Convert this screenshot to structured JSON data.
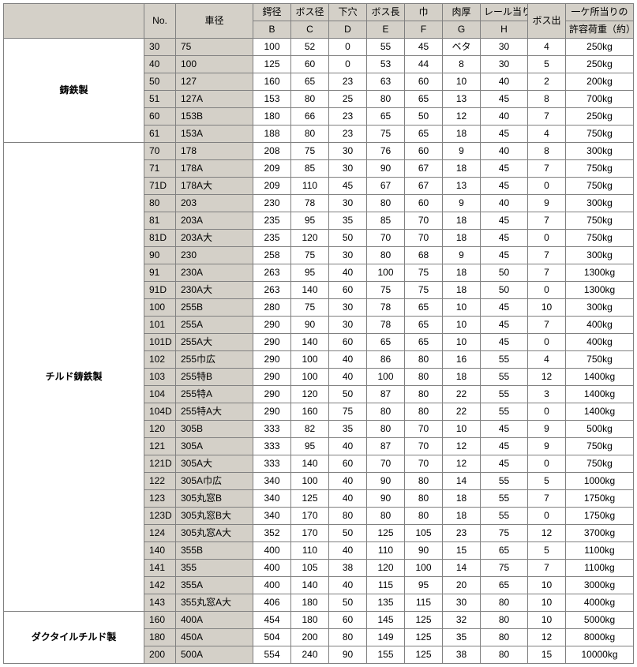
{
  "table": {
    "columns": [
      {
        "top": "",
        "bottom": "",
        "class": "c0"
      },
      {
        "top": "No.",
        "bottom": "",
        "class": "c1"
      },
      {
        "top": "車径",
        "bottom": "",
        "class": "c2"
      },
      {
        "top": "鍔径",
        "bottom": "B",
        "class": "c3"
      },
      {
        "top": "ボス径",
        "bottom": "C",
        "class": "c4"
      },
      {
        "top": "下穴",
        "bottom": "D",
        "class": "c5"
      },
      {
        "top": "ボス長",
        "bottom": "E",
        "class": "c6"
      },
      {
        "top": "巾",
        "bottom": "F",
        "class": "c7"
      },
      {
        "top": "肉厚",
        "bottom": "G",
        "class": "c8"
      },
      {
        "top": "レール当り",
        "bottom": "H",
        "class": "c9"
      },
      {
        "top": "ボス出",
        "bottom": "",
        "class": "c10"
      },
      {
        "top": "一ケ所当りの",
        "bottom": "許容荷重（約）",
        "class": "c11"
      }
    ],
    "categories": [
      {
        "name": "鋳鉄製",
        "rows": [
          [
            "30",
            "75",
            "100",
            "52",
            "0",
            "55",
            "45",
            "ベタ",
            "30",
            "4",
            "250kg"
          ],
          [
            "40",
            "100",
            "125",
            "60",
            "0",
            "53",
            "44",
            "8",
            "30",
            "5",
            "250kg"
          ],
          [
            "50",
            "127",
            "160",
            "65",
            "23",
            "63",
            "60",
            "10",
            "40",
            "2",
            "200kg"
          ],
          [
            "51",
            "127A",
            "153",
            "80",
            "25",
            "80",
            "65",
            "13",
            "45",
            "8",
            "700kg"
          ],
          [
            "60",
            "153B",
            "180",
            "66",
            "23",
            "65",
            "50",
            "12",
            "40",
            "7",
            "250kg"
          ],
          [
            "61",
            "153A",
            "188",
            "80",
            "23",
            "75",
            "65",
            "18",
            "45",
            "4",
            "750kg"
          ]
        ]
      },
      {
        "name": "チルド鋳鉄製",
        "rows": [
          [
            "70",
            "178",
            "208",
            "75",
            "30",
            "76",
            "60",
            "9",
            "40",
            "8",
            "300kg"
          ],
          [
            "71",
            "178A",
            "209",
            "85",
            "30",
            "90",
            "67",
            "18",
            "45",
            "7",
            "750kg"
          ],
          [
            "71D",
            "178A大",
            "209",
            "110",
            "45",
            "67",
            "67",
            "13",
            "45",
            "0",
            "750kg"
          ],
          [
            "80",
            "203",
            "230",
            "78",
            "30",
            "80",
            "60",
            "9",
            "40",
            "9",
            "300kg"
          ],
          [
            "81",
            "203A",
            "235",
            "95",
            "35",
            "85",
            "70",
            "18",
            "45",
            "7",
            "750kg"
          ],
          [
            "81D",
            "203A大",
            "235",
            "120",
            "50",
            "70",
            "70",
            "18",
            "45",
            "0",
            "750kg"
          ],
          [
            "90",
            "230",
            "258",
            "75",
            "30",
            "80",
            "68",
            "9",
            "45",
            "7",
            "300kg"
          ],
          [
            "91",
            "230A",
            "263",
            "95",
            "40",
            "100",
            "75",
            "18",
            "50",
            "7",
            "1300kg"
          ],
          [
            "91D",
            "230A大",
            "263",
            "140",
            "60",
            "75",
            "75",
            "18",
            "50",
            "0",
            "1300kg"
          ],
          [
            "100",
            "255B",
            "280",
            "75",
            "30",
            "78",
            "65",
            "10",
            "45",
            "10",
            "300kg"
          ],
          [
            "101",
            "255A",
            "290",
            "90",
            "30",
            "78",
            "65",
            "10",
            "45",
            "7",
            "400kg"
          ],
          [
            "101D",
            "255A大",
            "290",
            "140",
            "60",
            "65",
            "65",
            "10",
            "45",
            "0",
            "400kg"
          ],
          [
            "102",
            "255巾広",
            "290",
            "100",
            "40",
            "86",
            "80",
            "16",
            "55",
            "4",
            "750kg"
          ],
          [
            "103",
            "255特B",
            "290",
            "100",
            "40",
            "100",
            "80",
            "18",
            "55",
            "12",
            "1400kg"
          ],
          [
            "104",
            "255特A",
            "290",
            "120",
            "50",
            "87",
            "80",
            "22",
            "55",
            "3",
            "1400kg"
          ],
          [
            "104D",
            "255特A大",
            "290",
            "160",
            "75",
            "80",
            "80",
            "22",
            "55",
            "0",
            "1400kg"
          ],
          [
            "120",
            "305B",
            "333",
            "82",
            "35",
            "80",
            "70",
            "10",
            "45",
            "9",
            "500kg"
          ],
          [
            "121",
            "305A",
            "333",
            "95",
            "40",
            "87",
            "70",
            "12",
            "45",
            "9",
            "750kg"
          ],
          [
            "121D",
            "305A大",
            "333",
            "140",
            "60",
            "70",
            "70",
            "12",
            "45",
            "0",
            "750kg"
          ],
          [
            "122",
            "305A巾広",
            "340",
            "100",
            "40",
            "90",
            "80",
            "14",
            "55",
            "5",
            "1000kg"
          ],
          [
            "123",
            "305丸窓B",
            "340",
            "125",
            "40",
            "90",
            "80",
            "18",
            "55",
            "7",
            "1750kg"
          ],
          [
            "123D",
            "305丸窓B大",
            "340",
            "170",
            "80",
            "80",
            "80",
            "18",
            "55",
            "0",
            "1750kg"
          ],
          [
            "124",
            "305丸窓A大",
            "352",
            "170",
            "50",
            "125",
            "105",
            "23",
            "75",
            "12",
            "3700kg"
          ],
          [
            "140",
            "355B",
            "400",
            "110",
            "40",
            "110",
            "90",
            "15",
            "65",
            "5",
            "1100kg"
          ],
          [
            "141",
            "355",
            "400",
            "105",
            "38",
            "120",
            "100",
            "14",
            "75",
            "7",
            "1100kg"
          ],
          [
            "142",
            "355A",
            "400",
            "140",
            "40",
            "115",
            "95",
            "20",
            "65",
            "10",
            "3000kg"
          ],
          [
            "143",
            "355丸窓A大",
            "406",
            "180",
            "50",
            "135",
            "115",
            "30",
            "80",
            "10",
            "4000kg"
          ]
        ]
      },
      {
        "name": "ダクタイルチルド製",
        "rows": [
          [
            "160",
            "400A",
            "454",
            "180",
            "60",
            "145",
            "125",
            "32",
            "80",
            "10",
            "5000kg"
          ],
          [
            "180",
            "450A",
            "504",
            "200",
            "80",
            "149",
            "125",
            "35",
            "80",
            "12",
            "8000kg"
          ],
          [
            "200",
            "500A",
            "554",
            "240",
            "90",
            "155",
            "125",
            "38",
            "80",
            "15",
            "10000kg"
          ]
        ]
      }
    ]
  }
}
